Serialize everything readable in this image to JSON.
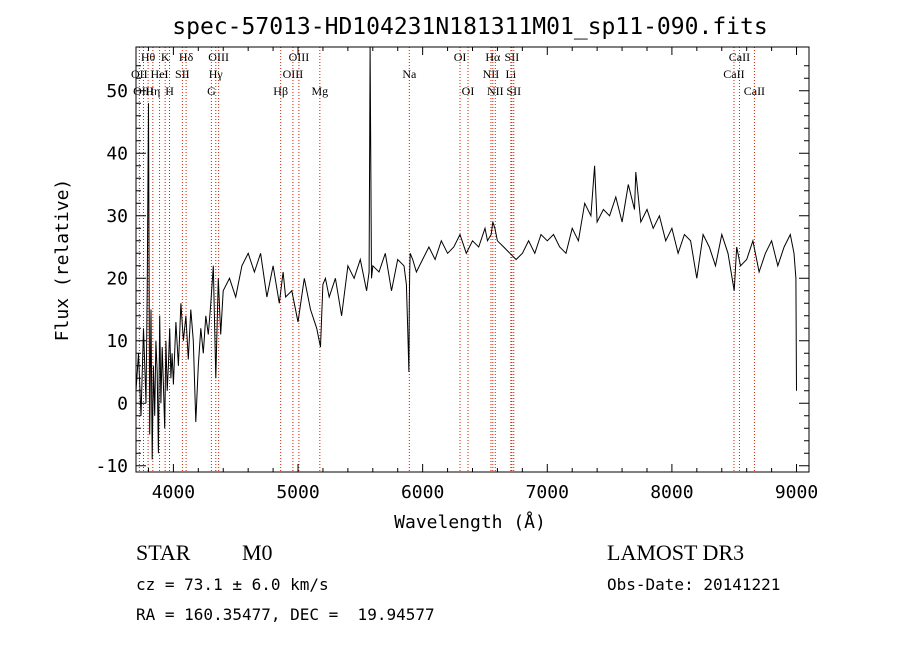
{
  "chart_data": {
    "type": "line",
    "title": "spec-57013-HD104231N181311M01_sp11-090.fits",
    "xlabel": "Wavelength (Å)",
    "ylabel": "Flux (relative)",
    "xlim": [
      3700,
      9100
    ],
    "ylim": [
      -11,
      57
    ],
    "xticks": [
      4000,
      5000,
      6000,
      7000,
      8000,
      9000
    ],
    "yticks": [
      -10,
      0,
      10,
      20,
      30,
      40,
      50
    ],
    "colors": {
      "line": "#000000",
      "marker": "#cc2200"
    },
    "series": [
      {
        "name": "flux",
        "x": [
          3700,
          3720,
          3740,
          3760,
          3780,
          3790,
          3800,
          3810,
          3820,
          3830,
          3840,
          3850,
          3860,
          3870,
          3880,
          3890,
          3900,
          3910,
          3920,
          3930,
          3940,
          3950,
          3960,
          3970,
          3980,
          3990,
          4000,
          4020,
          4040,
          4060,
          4080,
          4100,
          4120,
          4140,
          4160,
          4180,
          4200,
          4220,
          4240,
          4260,
          4280,
          4300,
          4320,
          4340,
          4360,
          4380,
          4400,
          4450,
          4500,
          4550,
          4600,
          4650,
          4700,
          4750,
          4800,
          4850,
          4880,
          4900,
          4950,
          5000,
          5050,
          5100,
          5150,
          5180,
          5200,
          5220,
          5250,
          5300,
          5350,
          5400,
          5450,
          5500,
          5550,
          5570,
          5578,
          5590,
          5600,
          5650,
          5700,
          5750,
          5800,
          5850,
          5870,
          5880,
          5890,
          5893,
          5896,
          5900,
          5920,
          5950,
          6000,
          6050,
          6100,
          6150,
          6200,
          6250,
          6300,
          6350,
          6400,
          6450,
          6500,
          6520,
          6550,
          6563,
          6580,
          6600,
          6650,
          6700,
          6750,
          6800,
          6850,
          6900,
          6950,
          7000,
          7050,
          7100,
          7150,
          7200,
          7250,
          7300,
          7350,
          7380,
          7400,
          7450,
          7500,
          7550,
          7600,
          7650,
          7700,
          7710,
          7750,
          7800,
          7850,
          7900,
          7950,
          8000,
          8050,
          8100,
          8150,
          8200,
          8250,
          8300,
          8350,
          8400,
          8450,
          8500,
          8520,
          8550,
          8600,
          8650,
          8700,
          8750,
          8800,
          8850,
          8900,
          8950,
          8980,
          8995,
          9000
        ],
        "values": [
          2,
          8,
          -2,
          12,
          0,
          18,
          48,
          -5,
          15,
          -9,
          6,
          -2,
          10,
          5,
          -8,
          14,
          0,
          9,
          3,
          -4,
          10,
          2,
          6,
          12,
          4,
          8,
          3,
          13,
          6,
          16,
          10,
          14,
          7,
          15,
          10,
          -3,
          6,
          12,
          8,
          14,
          11,
          16,
          22,
          4,
          20,
          11,
          18,
          20,
          17,
          22,
          24,
          21,
          24,
          17,
          22,
          16,
          21,
          17,
          18,
          13,
          20,
          15,
          12,
          9,
          19,
          20,
          17,
          20,
          14,
          22,
          20,
          23,
          18,
          21,
          57,
          20,
          22,
          21,
          24,
          18,
          23,
          22,
          19,
          12,
          5,
          16,
          21,
          24,
          23,
          21,
          23,
          25,
          23,
          26,
          24,
          25,
          27,
          24,
          26,
          25,
          28,
          26,
          27,
          29,
          28,
          26,
          25,
          24,
          23,
          24,
          26,
          24,
          27,
          26,
          27,
          25,
          24,
          28,
          26,
          32,
          30,
          38,
          29,
          31,
          30,
          33,
          29,
          35,
          31,
          37,
          29,
          31,
          28,
          30,
          26,
          28,
          24,
          27,
          26,
          20,
          27,
          25,
          22,
          27,
          24,
          18,
          25,
          22,
          23,
          26,
          21,
          24,
          26,
          22,
          25,
          27,
          24,
          20,
          2
        ]
      }
    ],
    "lines": [
      {
        "label": "Hθ",
        "x": 3797,
        "row": 1
      },
      {
        "label": "OII",
        "x": 3727,
        "row": 2
      },
      {
        "label": "OIII",
        "x": 3760,
        "row": 3
      },
      {
        "label": "K",
        "x": 3934,
        "row": 1
      },
      {
        "label": "H",
        "x": 3969,
        "row": 3
      },
      {
        "label": "Hη",
        "x": 3835,
        "row": 3
      },
      {
        "label": "HeI",
        "x": 3889,
        "row": 2
      },
      {
        "label": "SII",
        "x": 4072,
        "row": 2
      },
      {
        "label": "Hδ",
        "x": 4102,
        "row": 1
      },
      {
        "label": "OIII",
        "x": 4363,
        "row": 1
      },
      {
        "label": "Hγ",
        "x": 4340,
        "row": 2
      },
      {
        "label": "G",
        "x": 4305,
        "row": 3
      },
      {
        "label": "Hβ",
        "x": 4861,
        "row": 3
      },
      {
        "label": "OIII",
        "x": 4959,
        "row": 2
      },
      {
        "label": "OIII",
        "x": 5007,
        "row": 1
      },
      {
        "label": "Mg",
        "x": 5175,
        "row": 3
      },
      {
        "label": "Na",
        "x": 5893,
        "row": 2
      },
      {
        "label": "OI",
        "x": 6300,
        "row": 1
      },
      {
        "label": "OI",
        "x": 6364,
        "row": 3
      },
      {
        "label": "NII",
        "x": 6548,
        "row": 2
      },
      {
        "label": "Hα",
        "x": 6563,
        "row": 1
      },
      {
        "label": "NII",
        "x": 6583,
        "row": 3
      },
      {
        "label": "Li",
        "x": 6708,
        "row": 2
      },
      {
        "label": "SII",
        "x": 6716,
        "row": 1
      },
      {
        "label": "SII",
        "x": 6731,
        "row": 3
      },
      {
        "label": "CaII",
        "x": 8498,
        "row": 2
      },
      {
        "label": "CaII",
        "x": 8542,
        "row": 1
      },
      {
        "label": "CaII",
        "x": 8662,
        "row": 3
      }
    ]
  },
  "info": {
    "object_type": "STAR",
    "subclass": "M0",
    "survey": "LAMOST DR3",
    "cz": "cz = 73.1 ± 6.0 km/s",
    "obs_date": "Obs-Date: 20141221",
    "coords": "RA = 160.35477, DEC =  19.94577"
  }
}
